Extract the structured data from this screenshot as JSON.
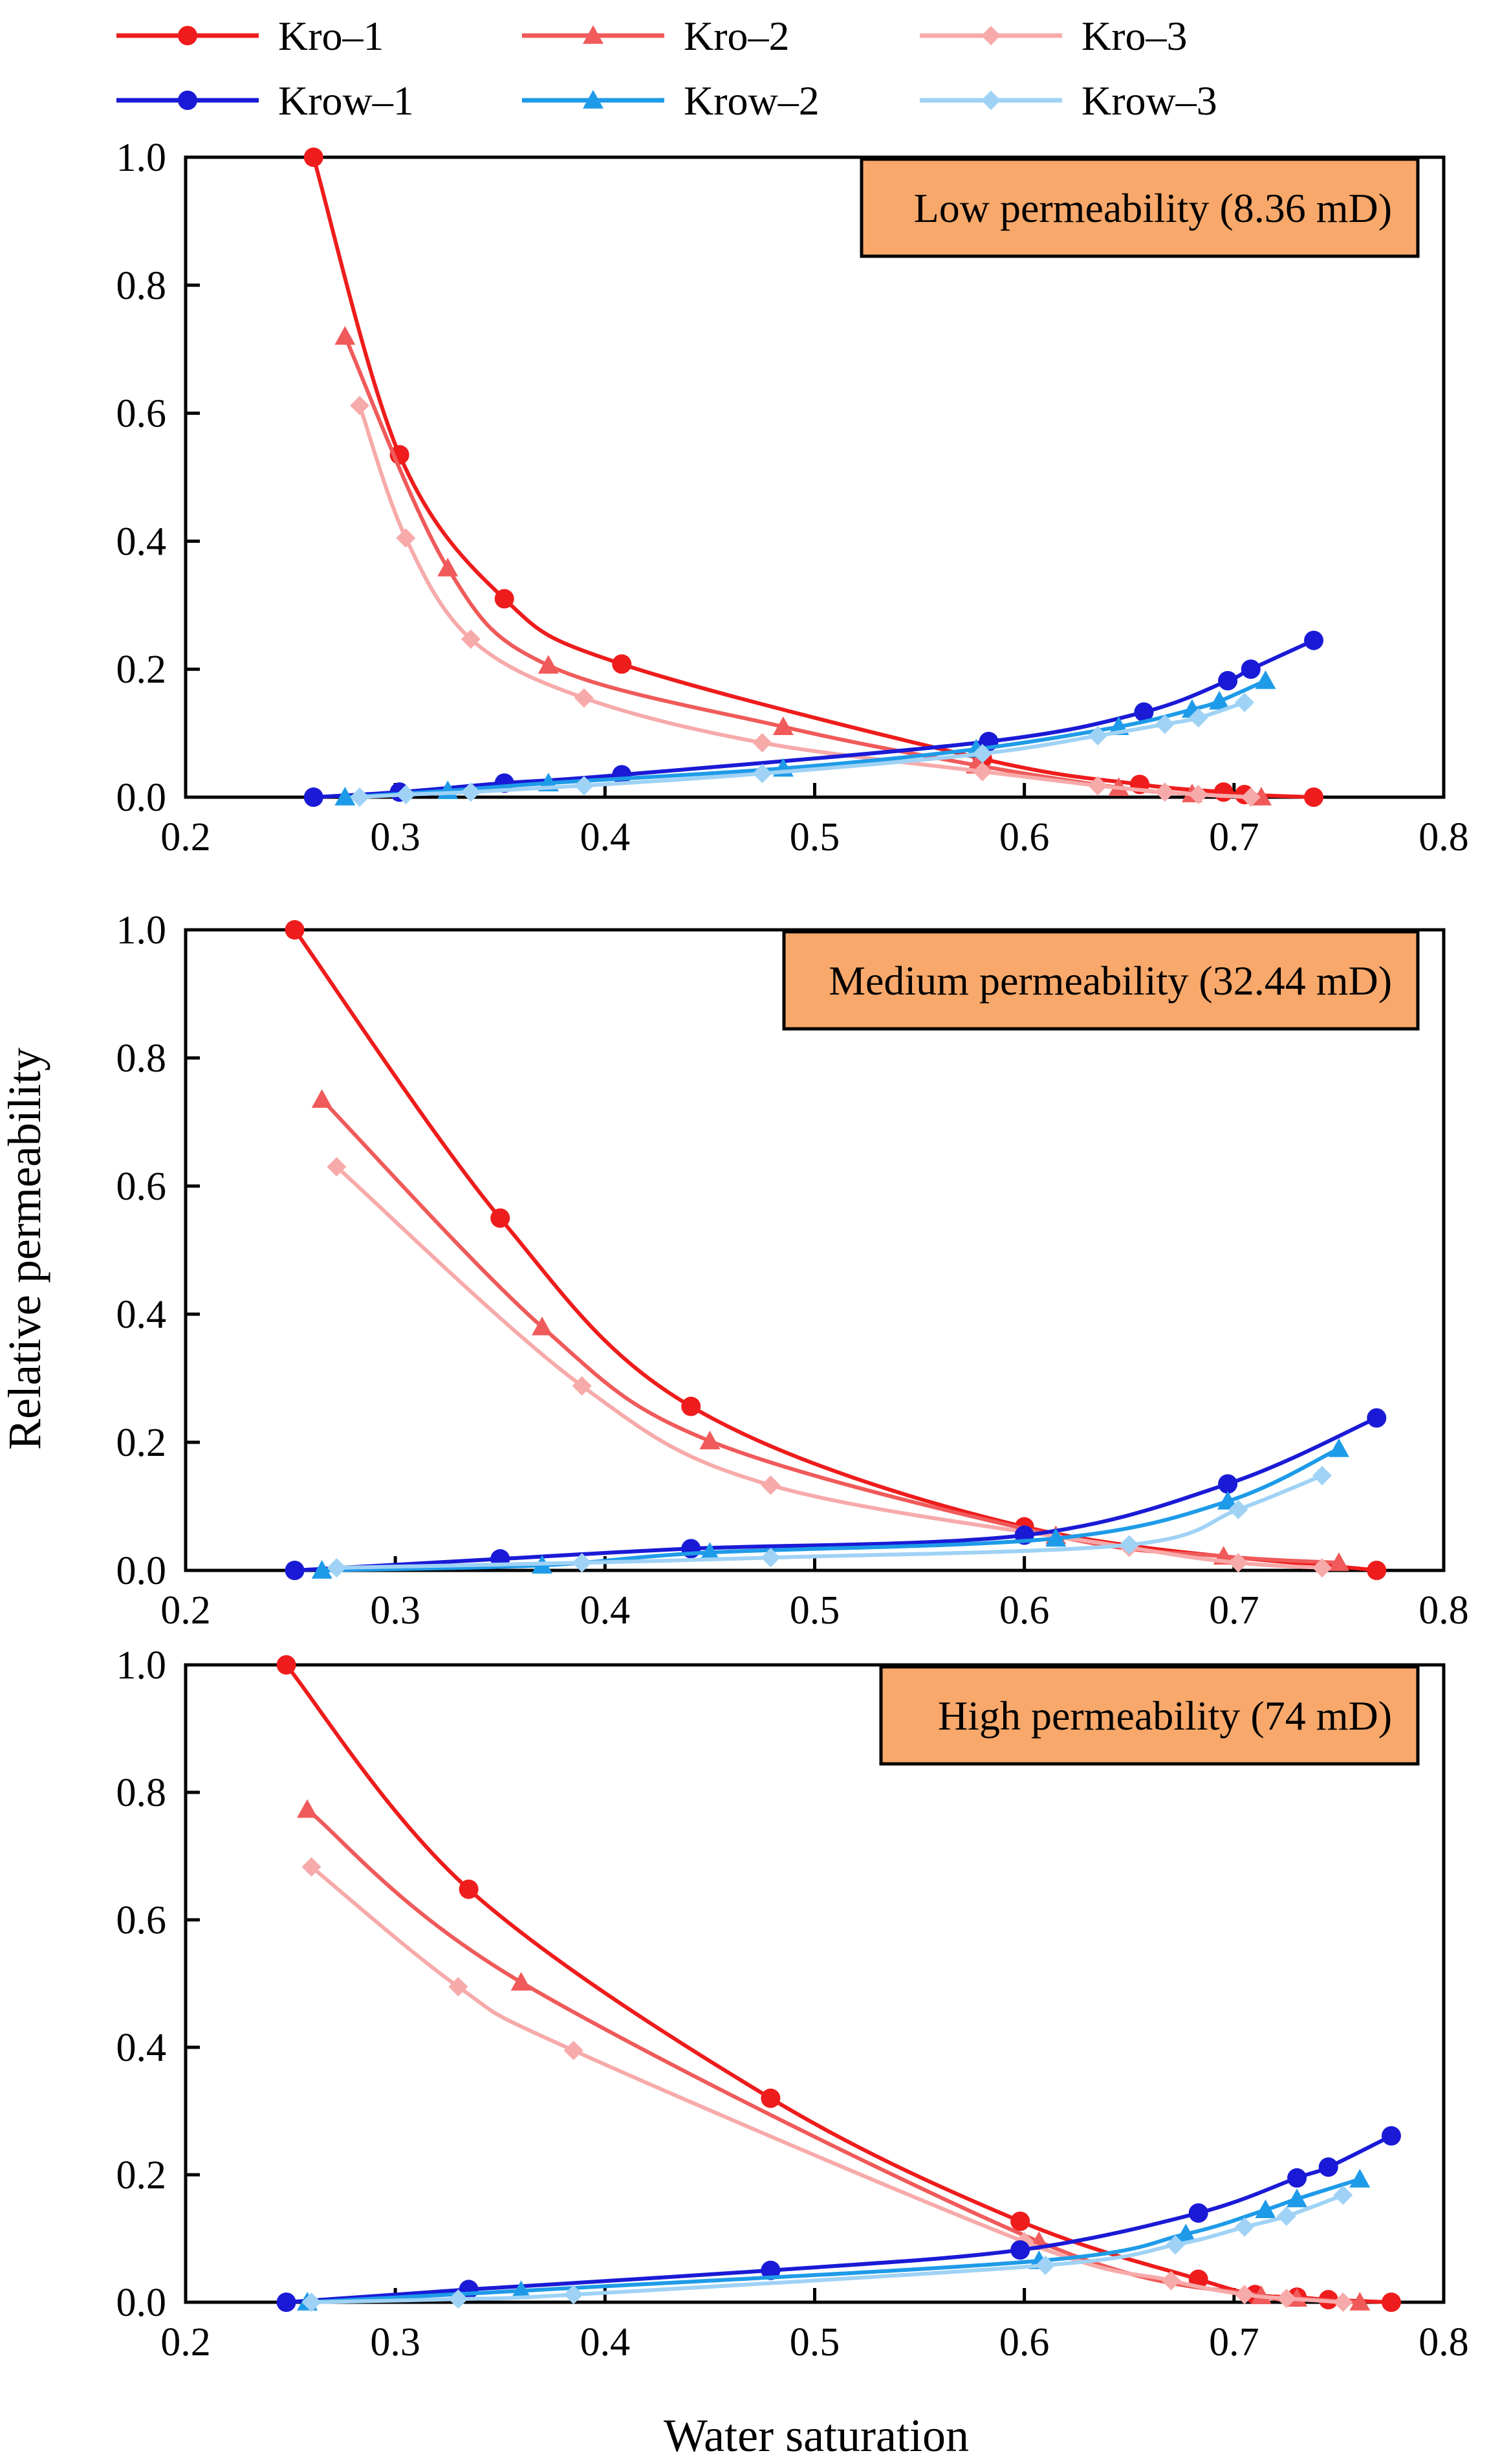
{
  "chart_data": {
    "type": "line",
    "ylabel": "Relative permeability",
    "xlabel": "Water saturation",
    "xlim": [
      0.2,
      0.8
    ],
    "ylim": [
      0.0,
      1.0
    ],
    "xticks": [
      "0.2",
      "0.3",
      "0.4",
      "0.5",
      "0.6",
      "0.7",
      "0.8"
    ],
    "yticks": [
      "0.0",
      "0.2",
      "0.4",
      "0.6",
      "0.8",
      "1.0"
    ],
    "colors": {
      "Kro-1": "#ee1c1c",
      "Kro-2": "#f05a5a",
      "Kro-3": "#f7aaaa",
      "Krow-1": "#1a1ad6",
      "Krow-2": "#1e9be8",
      "Krow-3": "#9fd2f5",
      "label_box": "#f7a86a"
    },
    "legend": [
      {
        "label": "Kro–1",
        "key": "Kro-1",
        "marker": "circle"
      },
      {
        "label": "Kro–2",
        "key": "Kro-2",
        "marker": "triangle"
      },
      {
        "label": "Kro–3",
        "key": "Kro-3",
        "marker": "diamond"
      },
      {
        "label": "Krow–1",
        "key": "Krow-1",
        "marker": "circle"
      },
      {
        "label": "Krow–2",
        "key": "Krow-2",
        "marker": "triangle"
      },
      {
        "label": "Krow–3",
        "key": "Krow-3",
        "marker": "diamond"
      }
    ],
    "panels": [
      {
        "label": "Low permeability (8.36 mD)",
        "series": [
          {
            "key": "Kro-1",
            "x": [
              0.261,
              0.302,
              0.352,
              0.408,
              0.58,
              0.655,
              0.695,
              0.705,
              0.738
            ],
            "y": [
              1.0,
              0.535,
              0.31,
              0.208,
              0.06,
              0.02,
              0.008,
              0.004,
              0.0
            ]
          },
          {
            "key": "Kro-2",
            "x": [
              0.276,
              0.325,
              0.373,
              0.485,
              0.577,
              0.645,
              0.68,
              0.713
            ],
            "y": [
              0.72,
              0.358,
              0.206,
              0.11,
              0.05,
              0.015,
              0.005,
              0.0
            ]
          },
          {
            "key": "Kro-3",
            "x": [
              0.283,
              0.305,
              0.336,
              0.39,
              0.475,
              0.58,
              0.635,
              0.667,
              0.683,
              0.708
            ],
            "y": [
              0.612,
              0.405,
              0.247,
              0.155,
              0.085,
              0.04,
              0.018,
              0.008,
              0.004,
              0.0
            ]
          },
          {
            "key": "Krow-1",
            "x": [
              0.261,
              0.302,
              0.352,
              0.408,
              0.583,
              0.657,
              0.697,
              0.708,
              0.738
            ],
            "y": [
              0.0,
              0.008,
              0.022,
              0.035,
              0.087,
              0.133,
              0.182,
              0.2,
              0.245
            ]
          },
          {
            "key": "Krow-2",
            "x": [
              0.276,
              0.325,
              0.373,
              0.485,
              0.577,
              0.645,
              0.68,
              0.693,
              0.715
            ],
            "y": [
              0.0,
              0.01,
              0.022,
              0.045,
              0.075,
              0.11,
              0.137,
              0.15,
              0.182
            ]
          },
          {
            "key": "Krow-3",
            "x": [
              0.283,
              0.305,
              0.336,
              0.39,
              0.475,
              0.58,
              0.635,
              0.667,
              0.683,
              0.705
            ],
            "y": [
              0.0,
              0.004,
              0.008,
              0.018,
              0.037,
              0.068,
              0.096,
              0.114,
              0.124,
              0.148
            ]
          }
        ]
      },
      {
        "label": "Medium permeability (32.44 mD)",
        "series": [
          {
            "key": "Kro-1",
            "x": [
              0.252,
              0.35,
              0.441,
              0.6,
              0.768
            ],
            "y": [
              1.0,
              0.55,
              0.256,
              0.068,
              0.0
            ]
          },
          {
            "key": "Kro-2",
            "x": [
              0.265,
              0.37,
              0.45,
              0.615,
              0.695,
              0.75
            ],
            "y": [
              0.735,
              0.38,
              0.202,
              0.054,
              0.022,
              0.012
            ]
          },
          {
            "key": "Kro-3",
            "x": [
              0.272,
              0.389,
              0.479,
              0.65,
              0.702,
              0.742
            ],
            "y": [
              0.63,
              0.288,
              0.133,
              0.036,
              0.012,
              0.004
            ]
          },
          {
            "key": "Krow-1",
            "x": [
              0.252,
              0.35,
              0.441,
              0.6,
              0.697,
              0.768
            ],
            "y": [
              0.0,
              0.018,
              0.034,
              0.055,
              0.135,
              0.238
            ]
          },
          {
            "key": "Krow-2",
            "x": [
              0.265,
              0.37,
              0.45,
              0.615,
              0.697,
              0.75
            ],
            "y": [
              0.0,
              0.008,
              0.028,
              0.05,
              0.108,
              0.19
            ]
          },
          {
            "key": "Krow-3",
            "x": [
              0.272,
              0.389,
              0.479,
              0.65,
              0.702,
              0.742
            ],
            "y": [
              0.004,
              0.012,
              0.02,
              0.04,
              0.095,
              0.148
            ]
          }
        ]
      },
      {
        "label": "High permeability (74 mD)",
        "series": [
          {
            "key": "Kro-1",
            "x": [
              0.248,
              0.335,
              0.479,
              0.598,
              0.683,
              0.71,
              0.73,
              0.745,
              0.775
            ],
            "y": [
              1.0,
              0.648,
              0.32,
              0.127,
              0.036,
              0.012,
              0.008,
              0.004,
              0.0
            ]
          },
          {
            "key": "Kro-2",
            "x": [
              0.258,
              0.36,
              0.607,
              0.713,
              0.73,
              0.76
            ],
            "y": [
              0.773,
              0.502,
              0.095,
              0.01,
              0.006,
              0.0
            ]
          },
          {
            "key": "Kro-3",
            "x": [
              0.26,
              0.33,
              0.385,
              0.6,
              0.67,
              0.705,
              0.725,
              0.752
            ],
            "y": [
              0.683,
              0.495,
              0.395,
              0.095,
              0.034,
              0.012,
              0.006,
              0.0
            ]
          },
          {
            "key": "Krow-1",
            "x": [
              0.248,
              0.335,
              0.479,
              0.598,
              0.683,
              0.73,
              0.745,
              0.775
            ],
            "y": [
              0.0,
              0.02,
              0.05,
              0.082,
              0.14,
              0.195,
              0.212,
              0.261
            ]
          },
          {
            "key": "Krow-2",
            "x": [
              0.258,
              0.36,
              0.607,
              0.677,
              0.715,
              0.73,
              0.76
            ],
            "y": [
              0.0,
              0.018,
              0.065,
              0.107,
              0.145,
              0.162,
              0.193
            ]
          },
          {
            "key": "Krow-3",
            "x": [
              0.26,
              0.33,
              0.385,
              0.61,
              0.672,
              0.705,
              0.725,
              0.752
            ],
            "y": [
              0.0,
              0.005,
              0.012,
              0.058,
              0.09,
              0.118,
              0.135,
              0.168
            ]
          }
        ]
      }
    ]
  }
}
